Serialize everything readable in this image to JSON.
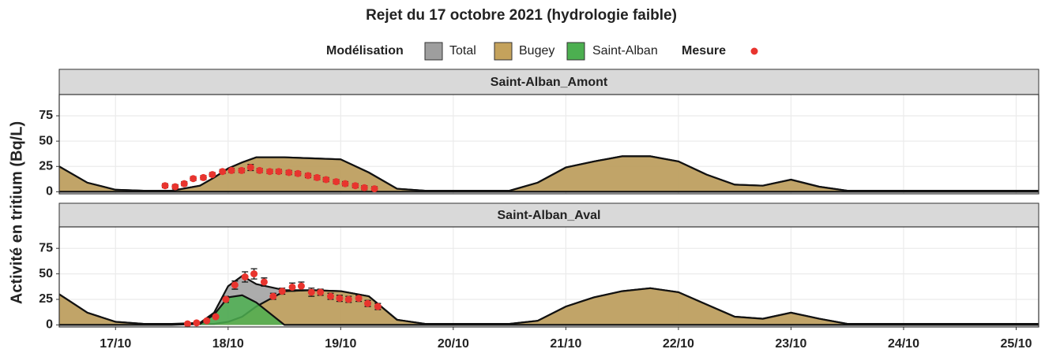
{
  "chart_data": {
    "type": "area",
    "title": "Rejet du 17 octobre 2021 (hydrologie faible)",
    "legend_title": "Modélisation",
    "measure_label": "Mesure",
    "measure_color": "#e8342e",
    "ylabel": "Activité en tritium (Bq/L)",
    "series": [
      {
        "name": "Total",
        "color": "#9e9e9e"
      },
      {
        "name": "Bugey",
        "color": "#c4a25c"
      },
      {
        "name": "Saint-Alban",
        "color": "#4caf50"
      }
    ],
    "x": [
      16.5,
      16.75,
      17,
      17.25,
      17.5,
      17.75,
      17.875,
      18,
      18.125,
      18.25,
      18.5,
      18.75,
      19,
      19.25,
      19.5,
      19.75,
      20,
      20.25,
      20.5,
      20.75,
      21,
      21.25,
      21.5,
      21.75,
      22,
      22.25,
      22.5,
      22.75,
      23,
      23.25,
      23.5,
      23.75,
      24,
      24.5,
      25,
      25.25
    ],
    "xlim": [
      16.5,
      25.2
    ],
    "xticks": [
      {
        "value": 17,
        "label": "17/10"
      },
      {
        "value": 18,
        "label": "18/10"
      },
      {
        "value": 19,
        "label": "19/10"
      },
      {
        "value": 20,
        "label": "20/10"
      },
      {
        "value": 21,
        "label": "21/10"
      },
      {
        "value": 22,
        "label": "22/10"
      },
      {
        "value": 23,
        "label": "23/10"
      },
      {
        "value": 24,
        "label": "24/10"
      },
      {
        "value": 25,
        "label": "25/10"
      }
    ],
    "ylim": [
      -2,
      96
    ],
    "yticks": [
      0,
      25,
      50,
      75
    ],
    "grid": true,
    "facets": [
      {
        "title": "Saint-Alban_Amont",
        "values": [
          [
            25,
            9,
            2,
            1,
            1,
            6,
            14,
            23,
            29,
            34,
            34,
            33,
            32,
            19,
            3,
            1,
            1,
            1,
            1,
            9,
            24,
            30,
            35,
            35,
            30,
            17,
            7,
            6,
            12,
            5,
            1,
            1,
            1,
            1,
            1,
            1
          ],
          [
            25,
            9,
            2,
            1,
            1,
            6,
            14,
            23,
            29,
            34,
            34,
            33,
            32,
            19,
            3,
            1,
            1,
            1,
            1,
            9,
            24,
            30,
            35,
            35,
            30,
            17,
            7,
            6,
            12,
            5,
            1,
            1,
            1,
            1,
            1,
            1
          ],
          [
            0,
            0,
            0,
            0,
            0,
            0,
            0,
            0,
            0,
            0,
            0,
            0,
            0,
            0,
            0,
            0,
            0,
            0,
            0,
            0,
            0,
            0,
            0,
            0,
            0,
            0,
            0,
            0,
            0,
            0,
            0,
            0,
            0,
            0,
            0,
            0
          ]
        ],
        "measures": {
          "x": [
            17.44,
            17.53,
            17.61,
            17.69,
            17.78,
            17.86,
            17.95,
            18.03,
            18.12,
            18.2,
            18.28,
            18.37,
            18.45,
            18.54,
            18.62,
            18.71,
            18.79,
            18.87,
            18.96,
            19.04,
            19.13,
            19.21,
            19.3
          ],
          "values": [
            6,
            5,
            8,
            13,
            14,
            17,
            20,
            21,
            21,
            24,
            21,
            20,
            20,
            19,
            18,
            16,
            14,
            12,
            10,
            8,
            6,
            4,
            3
          ],
          "errors": [
            2,
            2,
            2,
            2,
            2,
            2,
            2,
            2,
            2,
            3,
            2,
            2,
            2,
            2,
            2,
            2,
            2,
            2,
            2,
            2,
            2,
            2,
            2
          ]
        }
      },
      {
        "title": "Saint-Alban_Aval",
        "values": [
          [
            30,
            12,
            3,
            1,
            1,
            2,
            12,
            38,
            48,
            40,
            34,
            34,
            33,
            28,
            5,
            1,
            1,
            1,
            1,
            4,
            18,
            27,
            33,
            36,
            32,
            20,
            8,
            6,
            12,
            6,
            1,
            1,
            1,
            1,
            1,
            1
          ],
          [
            30,
            12,
            3,
            1,
            1,
            1,
            1,
            3,
            8,
            18,
            33,
            34,
            33,
            28,
            5,
            1,
            1,
            1,
            1,
            4,
            18,
            27,
            33,
            36,
            32,
            20,
            8,
            6,
            12,
            6,
            1,
            1,
            1,
            1,
            1,
            1
          ],
          [
            0,
            0,
            0,
            0,
            0,
            1,
            10,
            27,
            29,
            22,
            0,
            0,
            0,
            0,
            0,
            0,
            0,
            0,
            0,
            0,
            0,
            0,
            0,
            0,
            0,
            0,
            0,
            0,
            0,
            0,
            0,
            0,
            0,
            0,
            0,
            0
          ]
        ],
        "measures": {
          "x": [
            17.64,
            17.72,
            17.81,
            17.89,
            17.98,
            18.06,
            18.15,
            18.23,
            18.32,
            18.4,
            18.48,
            18.57,
            18.65,
            18.74,
            18.82,
            18.91,
            18.99,
            19.07,
            19.16,
            19.24,
            19.33
          ],
          "values": [
            1,
            2,
            4,
            8,
            25,
            39,
            47,
            50,
            42,
            28,
            33,
            37,
            38,
            32,
            32,
            28,
            26,
            25,
            26,
            21,
            18
          ],
          "errors": [
            1,
            1,
            1,
            1,
            3,
            4,
            5,
            5,
            4,
            3,
            3,
            4,
            4,
            4,
            3,
            3,
            3,
            3,
            3,
            3,
            3
          ]
        }
      }
    ]
  }
}
